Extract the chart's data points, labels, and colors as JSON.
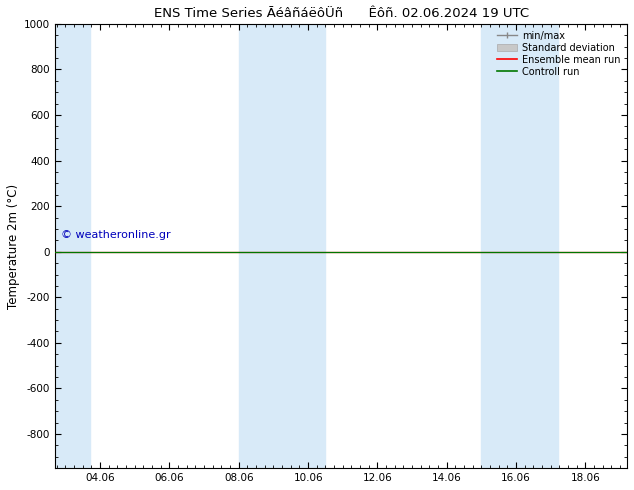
{
  "title_left": "ENS Time Series ĀéâñáëôÜñ",
  "title_right": "Êôñ. 02.06.2024 19 UTC",
  "ylabel": "Temperature 2m (°C)",
  "ylim_top": -950,
  "ylim_bottom": 1000,
  "yticks": [
    -800,
    -600,
    -400,
    -200,
    0,
    200,
    400,
    600,
    800,
    1000
  ],
  "xtick_labels": [
    "04.06",
    "06.06",
    "08.06",
    "10.06",
    "12.06",
    "14.06",
    "16.06",
    "18.06"
  ],
  "xtick_days": [
    1.0,
    3.0,
    5.0,
    7.0,
    9.0,
    11.0,
    13.0,
    15.0
  ],
  "xlim": [
    -0.3,
    16.2
  ],
  "shaded_bands_days": [
    [
      -0.3,
      0.7
    ],
    [
      5.0,
      6.0
    ],
    [
      6.0,
      7.5
    ],
    [
      12.0,
      13.0
    ],
    [
      13.0,
      14.2
    ]
  ],
  "shade_color": "#d8eaf8",
  "ensemble_mean_color": "#ff0000",
  "control_run_color": "#007700",
  "std_dev_color": "#c8c8c8",
  "minmax_color": "#888888",
  "copyright_text": "© weatheronline.gr",
  "copyright_color": "#0000bb",
  "background_color": "#ffffff",
  "legend_labels": [
    "min/max",
    "Standard deviation",
    "Ensemble mean run",
    "Controll run"
  ],
  "tick_fontsize": 7.5,
  "label_fontsize": 8.5,
  "title_fontsize": 9.5,
  "copyright_fontsize": 8
}
